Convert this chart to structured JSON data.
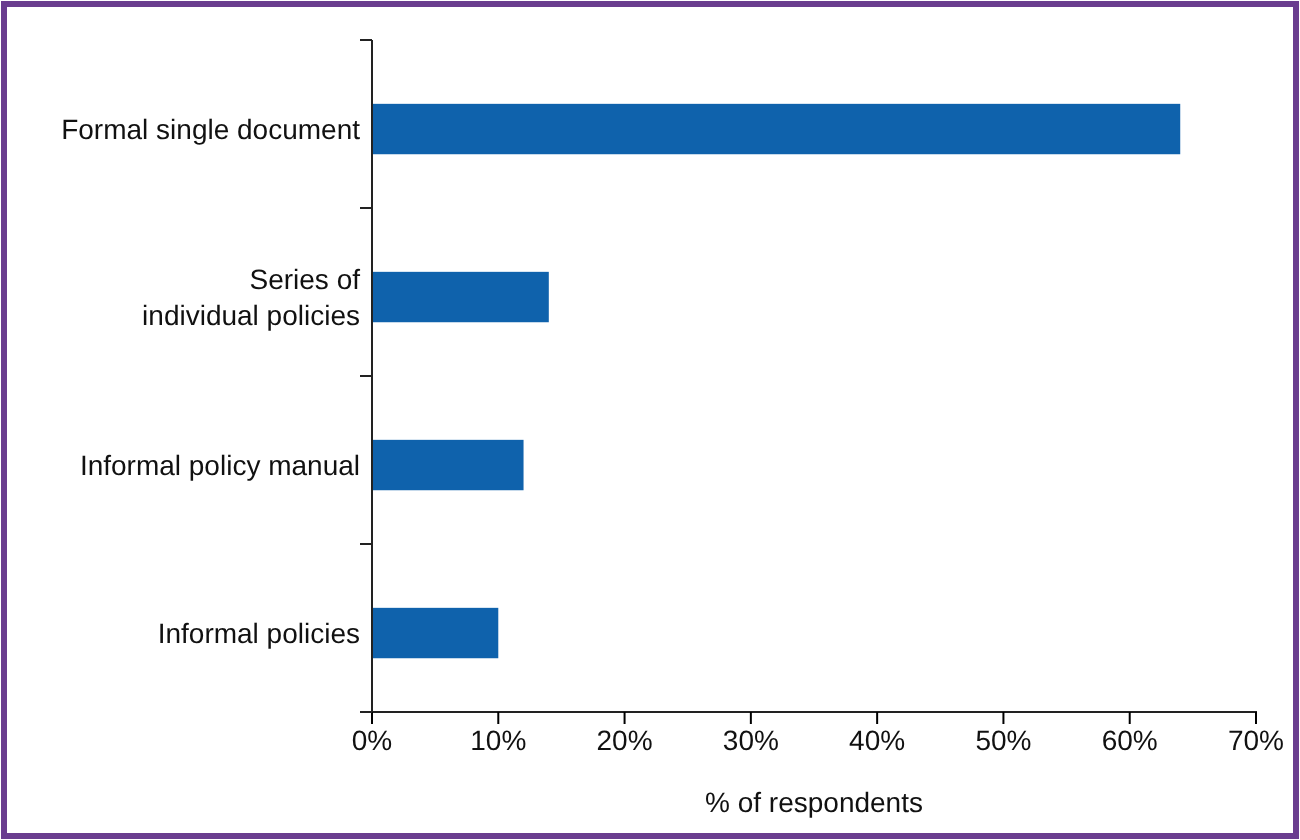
{
  "chart_data": {
    "type": "bar",
    "orientation": "horizontal",
    "categories": [
      "Formal single document",
      "Series of\nindividual policies",
      "Informal policy manual",
      "Informal policies"
    ],
    "values": [
      64,
      14,
      12,
      10
    ],
    "color": "#0f62ac",
    "xlabel": "% of respondents",
    "xlim": [
      0,
      70
    ],
    "xticks": [
      {
        "value": 0,
        "label": "0%"
      },
      {
        "value": 10,
        "label": "10%"
      },
      {
        "value": 20,
        "label": "20%"
      },
      {
        "value": 30,
        "label": "30%"
      },
      {
        "value": 40,
        "label": "40%"
      },
      {
        "value": 50,
        "label": "50%"
      },
      {
        "value": 60,
        "label": "60%"
      },
      {
        "value": 70,
        "label": "70%"
      }
    ],
    "grid": false
  }
}
